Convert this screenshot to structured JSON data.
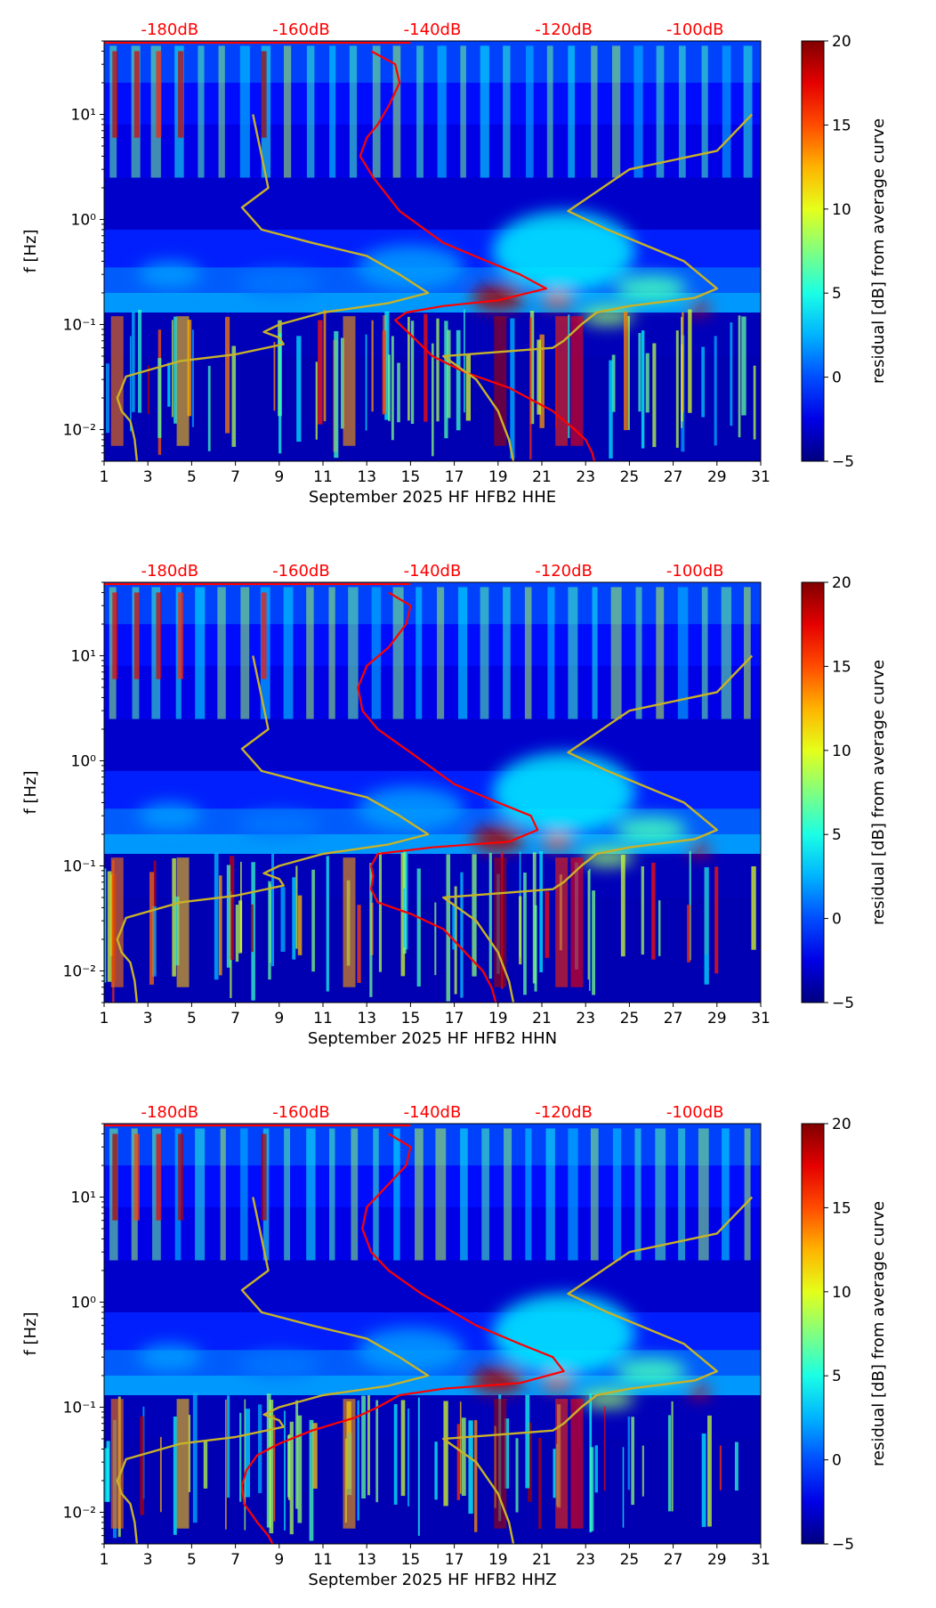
{
  "chart_data": [
    {
      "type": "heatmap",
      "title": "",
      "xlabel": "September 2025 HF HFB2  HHE",
      "ylabel": "f [Hz]",
      "xlim": [
        1,
        31
      ],
      "ylim": [
        0.005,
        50
      ],
      "y_scale": "log",
      "x_ticks": [
        "1",
        "3",
        "5",
        "7",
        "9",
        "11",
        "13",
        "15",
        "17",
        "19",
        "21",
        "23",
        "25",
        "27",
        "29",
        "31"
      ],
      "y_ticks": [
        {
          "value": 0.01,
          "label": "10⁻²"
        },
        {
          "value": 0.1,
          "label": "10⁻¹"
        },
        {
          "value": 1,
          "label": "10⁰"
        },
        {
          "value": 10,
          "label": "10¹"
        }
      ],
      "top_axis": {
        "labels": [
          "-180dB",
          "-160dB",
          "-140dB",
          "-120dB",
          "-100dB"
        ],
        "color": "#ff0000"
      },
      "colorbar": {
        "label": "residual [dB] from average curve",
        "range": [
          -5,
          20
        ],
        "ticks": [
          "−5",
          "0",
          "5",
          "10",
          "15",
          "20"
        ],
        "colormap": "jet"
      },
      "series": [
        {
          "color": "#ff0000",
          "points": [
            [
              13.2,
              40
            ],
            [
              14.3,
              30
            ],
            [
              14.5,
              20
            ],
            [
              14,
              12
            ],
            [
              13.5,
              8
            ],
            [
              13,
              6
            ],
            [
              12.7,
              4
            ],
            [
              13.3,
              2.5
            ],
            [
              14.5,
              1.2
            ],
            [
              16.5,
              0.6
            ],
            [
              18.5,
              0.4
            ],
            [
              20,
              0.3
            ],
            [
              21.2,
              0.22
            ],
            [
              19,
              0.17
            ],
            [
              16.5,
              0.15
            ],
            [
              14.8,
              0.13
            ],
            [
              14.3,
              0.11
            ],
            [
              15,
              0.08
            ],
            [
              16,
              0.05
            ],
            [
              17.5,
              0.035
            ],
            [
              19.5,
              0.025
            ],
            [
              21.5,
              0.015
            ],
            [
              22.5,
              0.01
            ],
            [
              23,
              0.008
            ],
            [
              23.3,
              0.006
            ],
            [
              23.4,
              0.005
            ]
          ]
        },
        {
          "color": "#c8b228",
          "points": [
            [
              7.8,
              10
            ],
            [
              8.2,
              4
            ],
            [
              8.5,
              2
            ],
            [
              7.3,
              1.3
            ],
            [
              8.2,
              0.8
            ],
            [
              10.5,
              0.6
            ],
            [
              13,
              0.45
            ],
            [
              14.5,
              0.3
            ],
            [
              15.8,
              0.2
            ],
            [
              14,
              0.16
            ],
            [
              11,
              0.13
            ],
            [
              9,
              0.1
            ],
            [
              8.3,
              0.085
            ],
            [
              9,
              0.075
            ],
            [
              9.2,
              0.065
            ],
            [
              7,
              0.052
            ],
            [
              4.5,
              0.045
            ],
            [
              2,
              0.032
            ],
            [
              1.8,
              0.025
            ],
            [
              1.6,
              0.02
            ],
            [
              1.8,
              0.015
            ],
            [
              2.2,
              0.012
            ],
            [
              2.4,
              0.008
            ],
            [
              2.5,
              0.005
            ]
          ]
        },
        {
          "color": "#c8b228",
          "points": [
            [
              30.6,
              10
            ],
            [
              29,
              4.5
            ],
            [
              25,
              3
            ],
            [
              22.2,
              1.2
            ],
            [
              24,
              0.8
            ],
            [
              27.5,
              0.4
            ],
            [
              29,
              0.22
            ],
            [
              28,
              0.18
            ],
            [
              25,
              0.15
            ],
            [
              23.5,
              0.13
            ],
            [
              22.8,
              0.1
            ],
            [
              22,
              0.07
            ],
            [
              21.5,
              0.06
            ],
            [
              16.5,
              0.05
            ],
            [
              18,
              0.03
            ],
            [
              19,
              0.015
            ],
            [
              19.5,
              0.008
            ],
            [
              19.7,
              0.005
            ]
          ]
        }
      ]
    },
    {
      "type": "heatmap",
      "title": "",
      "xlabel": "September 2025 HF HFB2  HHN",
      "ylabel": "f [Hz]",
      "xlim": [
        1,
        31
      ],
      "ylim": [
        0.005,
        50
      ],
      "y_scale": "log",
      "x_ticks": [
        "1",
        "3",
        "5",
        "7",
        "9",
        "11",
        "13",
        "15",
        "17",
        "19",
        "21",
        "23",
        "25",
        "27",
        "29",
        "31"
      ],
      "y_ticks": [
        {
          "value": 0.01,
          "label": "10⁻²"
        },
        {
          "value": 0.1,
          "label": "10⁻¹"
        },
        {
          "value": 1,
          "label": "10⁰"
        },
        {
          "value": 10,
          "label": "10¹"
        }
      ],
      "top_axis": {
        "labels": [
          "-180dB",
          "-160dB",
          "-140dB",
          "-120dB",
          "-100dB"
        ],
        "color": "#ff0000"
      },
      "colorbar": {
        "label": "residual [dB] from average curve",
        "range": [
          -5,
          20
        ],
        "ticks": [
          "−5",
          "0",
          "5",
          "10",
          "15",
          "20"
        ],
        "colormap": "jet"
      },
      "series": [
        {
          "color": "#ff0000",
          "points": [
            [
              14,
              40
            ],
            [
              15,
              30
            ],
            [
              14.8,
              20
            ],
            [
              14,
              12
            ],
            [
              13,
              8
            ],
            [
              12.6,
              5
            ],
            [
              12.8,
              3
            ],
            [
              13.5,
              2
            ],
            [
              15,
              1.2
            ],
            [
              17,
              0.6
            ],
            [
              19,
              0.4
            ],
            [
              20.5,
              0.3
            ],
            [
              20.8,
              0.22
            ],
            [
              19.5,
              0.17
            ],
            [
              16,
              0.15
            ],
            [
              13.5,
              0.13
            ],
            [
              13.2,
              0.1
            ],
            [
              13.3,
              0.08
            ],
            [
              13.2,
              0.06
            ],
            [
              13.5,
              0.045
            ],
            [
              15,
              0.035
            ],
            [
              16.5,
              0.025
            ],
            [
              17.5,
              0.015
            ],
            [
              18.3,
              0.01
            ],
            [
              18.7,
              0.007
            ],
            [
              18.9,
              0.005
            ]
          ]
        },
        {
          "color": "#c8b228",
          "points": [
            [
              7.8,
              10
            ],
            [
              8.2,
              4
            ],
            [
              8.5,
              2
            ],
            [
              7.3,
              1.3
            ],
            [
              8.2,
              0.8
            ],
            [
              10.5,
              0.6
            ],
            [
              13,
              0.45
            ],
            [
              14.5,
              0.3
            ],
            [
              15.8,
              0.2
            ],
            [
              14,
              0.16
            ],
            [
              11,
              0.13
            ],
            [
              9,
              0.1
            ],
            [
              8.3,
              0.085
            ],
            [
              9,
              0.075
            ],
            [
              9.2,
              0.065
            ],
            [
              7,
              0.052
            ],
            [
              4.5,
              0.045
            ],
            [
              2,
              0.032
            ],
            [
              1.8,
              0.025
            ],
            [
              1.6,
              0.02
            ],
            [
              1.8,
              0.015
            ],
            [
              2.2,
              0.012
            ],
            [
              2.4,
              0.008
            ],
            [
              2.5,
              0.005
            ]
          ]
        },
        {
          "color": "#c8b228",
          "points": [
            [
              30.6,
              10
            ],
            [
              29,
              4.5
            ],
            [
              25,
              3
            ],
            [
              22.2,
              1.2
            ],
            [
              24,
              0.8
            ],
            [
              27.5,
              0.4
            ],
            [
              29,
              0.22
            ],
            [
              28,
              0.18
            ],
            [
              25,
              0.15
            ],
            [
              23.5,
              0.13
            ],
            [
              22.8,
              0.1
            ],
            [
              22,
              0.07
            ],
            [
              21.5,
              0.06
            ],
            [
              16.5,
              0.05
            ],
            [
              18,
              0.03
            ],
            [
              19,
              0.015
            ],
            [
              19.5,
              0.008
            ],
            [
              19.7,
              0.005
            ]
          ]
        }
      ]
    },
    {
      "type": "heatmap",
      "title": "",
      "xlabel": "September 2025 HF HFB2  HHZ",
      "ylabel": "f [Hz]",
      "xlim": [
        1,
        31
      ],
      "ylim": [
        0.005,
        50
      ],
      "y_scale": "log",
      "x_ticks": [
        "1",
        "3",
        "5",
        "7",
        "9",
        "11",
        "13",
        "15",
        "17",
        "19",
        "21",
        "23",
        "25",
        "27",
        "29",
        "31"
      ],
      "y_ticks": [
        {
          "value": 0.01,
          "label": "10⁻²"
        },
        {
          "value": 0.1,
          "label": "10⁻¹"
        },
        {
          "value": 1,
          "label": "10⁰"
        },
        {
          "value": 10,
          "label": "10¹"
        }
      ],
      "top_axis": {
        "labels": [
          "-180dB",
          "-160dB",
          "-140dB",
          "-120dB",
          "-100dB"
        ],
        "color": "#ff0000"
      },
      "colorbar": {
        "label": "residual [dB] from average curve",
        "range": [
          -5,
          20
        ],
        "ticks": [
          "−5",
          "0",
          "5",
          "10",
          "15",
          "20"
        ],
        "colormap": "jet"
      },
      "series": [
        {
          "color": "#ff0000",
          "points": [
            [
              14,
              40
            ],
            [
              15,
              30
            ],
            [
              14.8,
              20
            ],
            [
              13.8,
              12
            ],
            [
              13,
              8
            ],
            [
              12.8,
              5
            ],
            [
              13.2,
              3
            ],
            [
              14,
              2
            ],
            [
              15.5,
              1.2
            ],
            [
              18,
              0.6
            ],
            [
              20,
              0.4
            ],
            [
              21.5,
              0.3
            ],
            [
              22,
              0.22
            ],
            [
              20,
              0.17
            ],
            [
              16.5,
              0.15
            ],
            [
              14.5,
              0.13
            ],
            [
              13.5,
              0.1
            ],
            [
              12.5,
              0.08
            ],
            [
              10.5,
              0.06
            ],
            [
              9,
              0.045
            ],
            [
              8,
              0.035
            ],
            [
              7.5,
              0.025
            ],
            [
              7.3,
              0.018
            ],
            [
              7.4,
              0.012
            ],
            [
              8,
              0.008
            ],
            [
              8.5,
              0.006
            ],
            [
              8.7,
              0.005
            ]
          ]
        },
        {
          "color": "#c8b228",
          "points": [
            [
              7.8,
              10
            ],
            [
              8.2,
              4
            ],
            [
              8.5,
              2
            ],
            [
              7.3,
              1.3
            ],
            [
              8.2,
              0.8
            ],
            [
              10.5,
              0.6
            ],
            [
              13,
              0.45
            ],
            [
              14.5,
              0.3
            ],
            [
              15.8,
              0.2
            ],
            [
              14,
              0.16
            ],
            [
              11,
              0.13
            ],
            [
              9,
              0.1
            ],
            [
              8.3,
              0.085
            ],
            [
              9,
              0.075
            ],
            [
              9.2,
              0.065
            ],
            [
              7,
              0.052
            ],
            [
              4.5,
              0.045
            ],
            [
              2,
              0.032
            ],
            [
              1.8,
              0.025
            ],
            [
              1.6,
              0.02
            ],
            [
              1.8,
              0.015
            ],
            [
              2.2,
              0.012
            ],
            [
              2.4,
              0.008
            ],
            [
              2.5,
              0.005
            ]
          ]
        },
        {
          "color": "#c8b228",
          "points": [
            [
              30.6,
              10
            ],
            [
              29,
              4.5
            ],
            [
              25,
              3
            ],
            [
              22.2,
              1.2
            ],
            [
              24,
              0.8
            ],
            [
              27.5,
              0.4
            ],
            [
              29,
              0.22
            ],
            [
              28,
              0.18
            ],
            [
              25,
              0.15
            ],
            [
              23.5,
              0.13
            ],
            [
              22.8,
              0.1
            ],
            [
              22,
              0.07
            ],
            [
              21.5,
              0.06
            ],
            [
              16.5,
              0.05
            ],
            [
              18,
              0.03
            ],
            [
              19,
              0.015
            ],
            [
              19.5,
              0.008
            ],
            [
              19.7,
              0.005
            ]
          ]
        }
      ]
    }
  ]
}
